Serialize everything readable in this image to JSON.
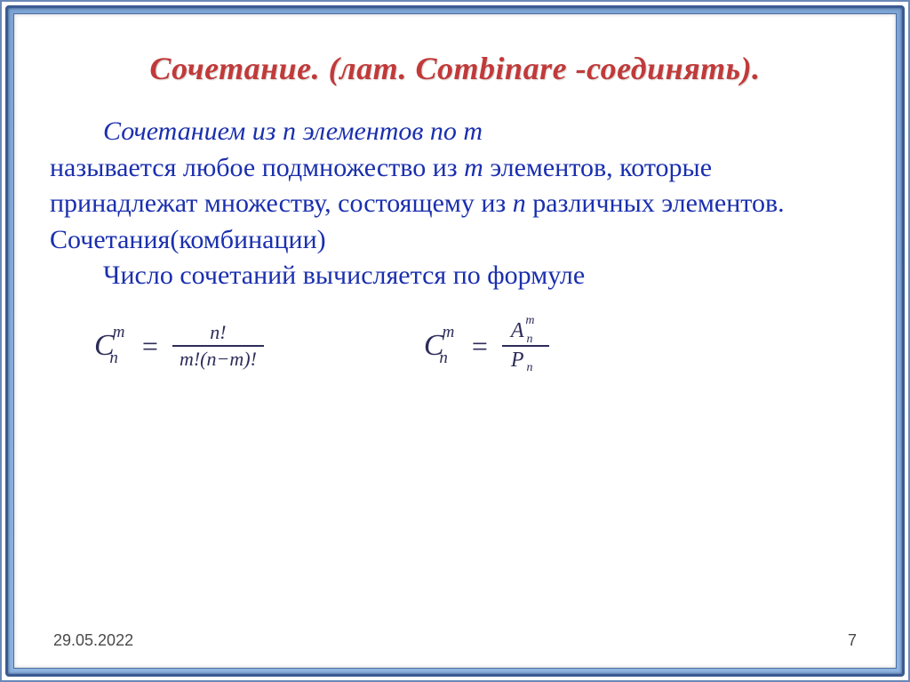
{
  "slide": {
    "title": "Сочетание. (лат. Combinare -соединять).",
    "title_color": "#c13a3a",
    "text_color": "#1a2fae",
    "background_color": "#ffffff",
    "frame_gradient": [
      "#7ea4d6",
      "#8fb3e0"
    ],
    "frame_border": "#3a5a92",
    "font_family_body": "Georgia, Times New Roman, serif",
    "body_fontsize": 30,
    "title_fontsize": 36,
    "p1_lead_italic": "Сочетанием из n элементов по m",
    "p1_rest_a": "называется любое подмножество из ",
    "p1_m": "m",
    "p1_rest_b": " элементов, которые принадлежат множеству, состоящему из ",
    "p1_n": "n",
    "p1_rest_c": " различных элементов. Сочетания(комбинации)",
    "p2": "Число сочетаний вычисляется по формуле",
    "formula1": {
      "base": "C",
      "sup": "m",
      "sub": "n",
      "numerator": "n!",
      "denominator": "m!(n−m)!"
    },
    "formula2": {
      "base": "C",
      "sup": "m",
      "sub": "n",
      "num_base": "A",
      "num_sup": "m",
      "num_sub": "n",
      "den_base": "P",
      "den_sub": "n"
    },
    "formula_color": "#2d2d5a"
  },
  "footer": {
    "date": "29.05.2022",
    "page": "7",
    "font_family": "Arial",
    "font_size": 18,
    "color": "#4a4a4a"
  }
}
